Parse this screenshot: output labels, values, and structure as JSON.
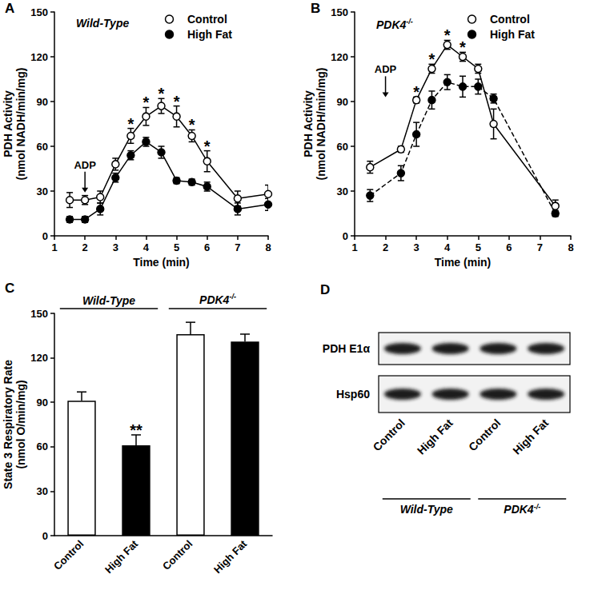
{
  "chart_data": [
    {
      "type": "line",
      "title": "A",
      "subtitle": "Wild-Type",
      "x_label": "Time (min)",
      "y_label": "PDH Activity\n(nmol NADH/min/mg)",
      "x": [
        1.5,
        2,
        2.5,
        3,
        3.5,
        4,
        4.5,
        5,
        5.5,
        6,
        7,
        8
      ],
      "series": [
        {
          "name": "Control",
          "color": "#000000",
          "marker": "circle_open",
          "line_style": "solid",
          "values": [
            24,
            24,
            26,
            48,
            67,
            80,
            87,
            80,
            67,
            50,
            25,
            28
          ],
          "errors": [
            5,
            3,
            4,
            4,
            5,
            6,
            5,
            7,
            4,
            7,
            5,
            6
          ]
        },
        {
          "name": "High Fat",
          "color": "#000000",
          "marker": "circle",
          "line_style": "solid",
          "values": [
            11,
            11,
            18,
            39,
            54,
            63,
            56,
            37,
            36,
            33,
            18,
            21
          ],
          "errors": [
            2,
            2,
            4,
            3,
            3,
            3,
            4,
            2,
            2,
            3,
            4,
            4
          ]
        }
      ],
      "significance": [
        null,
        null,
        null,
        null,
        "*",
        "*",
        "*",
        "*",
        "*",
        "*",
        null,
        null
      ],
      "annotations": [
        {
          "text": "ADP",
          "x": 2,
          "y": 44
        }
      ],
      "xlim": [
        1,
        8
      ],
      "xticks": [
        1,
        2,
        3,
        4,
        5,
        6,
        7,
        8
      ],
      "ylim": [
        0,
        150
      ],
      "yticks": [
        0,
        30,
        60,
        90,
        120,
        150
      ],
      "grid": false,
      "legend": "upper right"
    },
    {
      "type": "line",
      "title": "B",
      "subtitle": "PDK4-/-",
      "x_label": "Time (min)",
      "y_label": "PDH Activity\n(nmol NADH/min/mg)",
      "x": [
        1.5,
        2.5,
        3,
        3.5,
        4,
        4.5,
        5,
        5.5,
        7.5
      ],
      "series": [
        {
          "name": "Control",
          "color": "#000000",
          "marker": "circle_open",
          "line_style": "solid",
          "values": [
            46,
            58,
            91,
            112,
            128,
            120,
            112,
            75,
            20
          ],
          "errors": [
            4,
            2,
            2,
            3,
            3,
            3,
            3,
            10,
            4
          ]
        },
        {
          "name": "High Fat",
          "color": "#000000",
          "marker": "circle",
          "line_style": "dashed",
          "values": [
            27,
            42,
            68,
            91,
            103,
            100,
            100,
            92,
            15
          ],
          "errors": [
            4,
            5,
            8,
            6,
            5,
            7,
            5,
            3,
            2
          ]
        }
      ],
      "significance": [
        null,
        null,
        "*",
        "*",
        "*",
        "*",
        null,
        null,
        null
      ],
      "annotations": [
        {
          "text": "ADP",
          "x": 2,
          "y": 108
        }
      ],
      "xlim": [
        1,
        8
      ],
      "xticks": [
        1,
        2,
        3,
        4,
        5,
        6,
        7,
        8
      ],
      "ylim": [
        0,
        150
      ],
      "yticks": [
        0,
        30,
        60,
        90,
        120,
        150
      ],
      "grid": false,
      "legend": "upper right"
    },
    {
      "type": "bar",
      "title": "C",
      "y_label": "State 3 Respiratory Rate\n(nmol O/min/mg)",
      "categories": [
        "Control",
        "High Fat",
        "Control",
        "High Fat"
      ],
      "groups": [
        {
          "name": "Wild-Type",
          "count": 2
        },
        {
          "name": "PDK4-/-",
          "count": 2
        }
      ],
      "values": [
        91,
        61,
        136,
        131
      ],
      "errors": [
        6,
        7,
        8,
        5
      ],
      "colors": [
        "#ffffff",
        "#000000",
        "#ffffff",
        "#000000"
      ],
      "significance": [
        null,
        "**",
        null,
        null
      ],
      "ylim": [
        0,
        150
      ],
      "yticks": [
        0,
        30,
        60,
        90,
        120,
        150
      ],
      "grid": false
    }
  ],
  "blot": {
    "title": "D",
    "rows": [
      "PDH E1α",
      "Hsp60"
    ],
    "lanes": [
      "Control",
      "High Fat",
      "Control",
      "High Fat"
    ],
    "groups": [
      {
        "name": "Wild-Type",
        "count": 2
      },
      {
        "name": "PDK4-/-",
        "count": 2
      }
    ]
  }
}
